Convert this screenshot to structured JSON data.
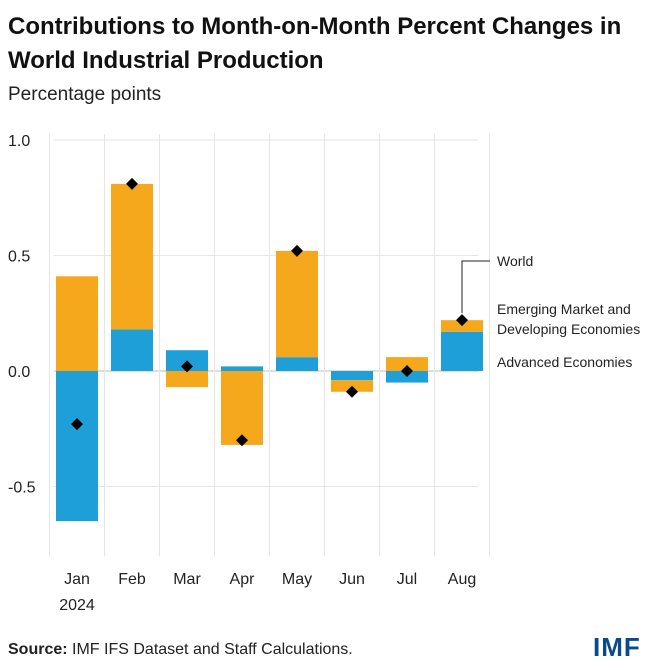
{
  "title": "Contributions to Month-on-Month Percent Changes in World Industrial Production",
  "subtitle": "Percentage points",
  "source": {
    "label": "Source:",
    "text": "IMF IFS Dataset and Staff Calculations."
  },
  "logo": "IMF",
  "colors": {
    "advanced": "#1E9FD8",
    "emerging": "#F5A81C",
    "world_marker": "#000000",
    "grid": "#E6E6E6",
    "zero_line": "#BDBDBD"
  },
  "chart_data": {
    "type": "bar",
    "stacked": true,
    "title": "Contributions to Month-on-Month Percent Changes in World Industrial Production",
    "ylabel": "Percentage points",
    "xlabel": "",
    "categories": [
      "Jan",
      "Feb",
      "Mar",
      "Apr",
      "May",
      "Jun",
      "Jul",
      "Aug"
    ],
    "year_label": "2024",
    "ylim": [
      -0.75,
      1.0
    ],
    "yticks": [
      1.0,
      0.5,
      0.0,
      -0.5
    ],
    "ytick_labels": [
      "1.0",
      "0.5",
      "0.0",
      "-0.5"
    ],
    "grid": true,
    "series": [
      {
        "name": "Advanced Economies",
        "key": "advanced",
        "values": [
          -0.65,
          0.18,
          0.09,
          0.02,
          0.06,
          -0.04,
          -0.05,
          0.17
        ]
      },
      {
        "name": "Emerging Market and Developing Economies",
        "key": "emerging",
        "values": [
          0.41,
          0.63,
          -0.07,
          -0.32,
          0.46,
          -0.05,
          0.06,
          0.05
        ]
      }
    ],
    "world": {
      "name": "World",
      "values": [
        -0.23,
        0.81,
        0.02,
        -0.3,
        0.52,
        -0.09,
        0.0,
        0.22
      ]
    },
    "legend": {
      "placement": "right",
      "world": "World",
      "emerging_line1": "Emerging Market and",
      "emerging_line2": "Developing Economies",
      "advanced": "Advanced Economies"
    }
  }
}
